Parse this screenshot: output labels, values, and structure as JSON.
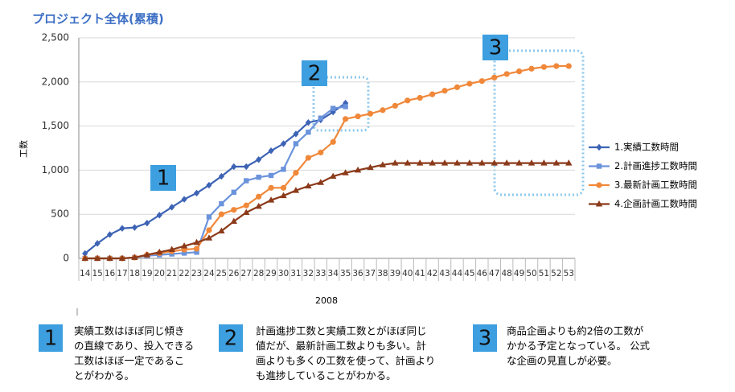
{
  "chart_data": {
    "type": "line",
    "title": "プロジェクト全体(累積)",
    "ylabel": "工数",
    "xlabel": "2008",
    "categories": [
      "14",
      "15",
      "16",
      "17",
      "18",
      "19",
      "20",
      "21",
      "22",
      "23",
      "24",
      "25",
      "26",
      "27",
      "28",
      "29",
      "30",
      "31",
      "32",
      "33",
      "34",
      "35",
      "36",
      "37",
      "38",
      "39",
      "40",
      "41",
      "42",
      "43",
      "44",
      "45",
      "46",
      "47",
      "48",
      "49",
      "50",
      "51",
      "52",
      "53"
    ],
    "ylim": [
      0,
      2500
    ],
    "yticks": [
      0,
      500,
      {
        "value": 1000,
        "label": "1,000"
      },
      {
        "value": 1500,
        "label": "1,500"
      },
      {
        "value": 2000,
        "label": "2,000"
      },
      {
        "value": 2500,
        "label": "2,500"
      }
    ],
    "grid": true,
    "legend": "right",
    "series": [
      {
        "name": "1.実績工数時間",
        "color": "#3d63b5",
        "marker": "diamond",
        "values": [
          55,
          170,
          270,
          340,
          350,
          400,
          490,
          580,
          670,
          740,
          830,
          930,
          1040,
          1040,
          1120,
          1220,
          1300,
          1410,
          1540,
          1570,
          1660,
          1760,
          null,
          null,
          null,
          null,
          null,
          null,
          null,
          null,
          null,
          null,
          null,
          null,
          null,
          null,
          null,
          null,
          null,
          null
        ]
      },
      {
        "name": "2.計画進捗工数時間",
        "color": "#6b93dc",
        "marker": "square",
        "values": [
          0,
          0,
          0,
          0,
          10,
          30,
          40,
          50,
          60,
          70,
          470,
          620,
          750,
          880,
          920,
          940,
          1010,
          1300,
          1430,
          1590,
          1700,
          1720,
          null,
          null,
          null,
          null,
          null,
          null,
          null,
          null,
          null,
          null,
          null,
          null,
          null,
          null,
          null,
          null,
          null,
          null
        ]
      },
      {
        "name": "3.最新計画工数時間",
        "color": "#f0883a",
        "marker": "circle",
        "values": [
          0,
          0,
          0,
          0,
          10,
          40,
          60,
          80,
          100,
          110,
          320,
          500,
          550,
          600,
          700,
          800,
          800,
          970,
          1140,
          1200,
          1320,
          1580,
          1610,
          1640,
          1680,
          1730,
          1790,
          1820,
          1860,
          1900,
          1940,
          1980,
          2010,
          2050,
          2090,
          2120,
          2150,
          2170,
          2180,
          2180
        ]
      },
      {
        "name": "4.企画計画工数時間",
        "color": "#8b3a1a",
        "marker": "triangle",
        "values": [
          0,
          0,
          0,
          0,
          10,
          40,
          70,
          100,
          140,
          180,
          230,
          310,
          420,
          520,
          590,
          660,
          710,
          770,
          820,
          860,
          930,
          970,
          1000,
          1030,
          1060,
          1080,
          1080,
          1080,
          1080,
          1080,
          1080,
          1080,
          1080,
          1080,
          1080,
          1080,
          1080,
          1080,
          1080,
          1080
        ]
      }
    ],
    "annotations": [
      {
        "label": "1",
        "lines": [
          "実績工数はほぼ同じ傾き",
          "の直線であり、投入できる",
          "工数はほぼ一定であるこ",
          "とがわかる。"
        ]
      },
      {
        "label": "2",
        "lines": [
          "計画進捗工数と実績工数とがほぼ同じ",
          "値だが、最新計画工数よりも多い。計",
          "画よりも多くの工数を使って、計画より",
          "も進捗していることがわかる。"
        ]
      },
      {
        "label": "3",
        "lines": [
          "商品企画よりも約2倍の工数が",
          "かかる予定となっている。 公式",
          "な企画の見直しが必要。"
        ]
      }
    ]
  }
}
